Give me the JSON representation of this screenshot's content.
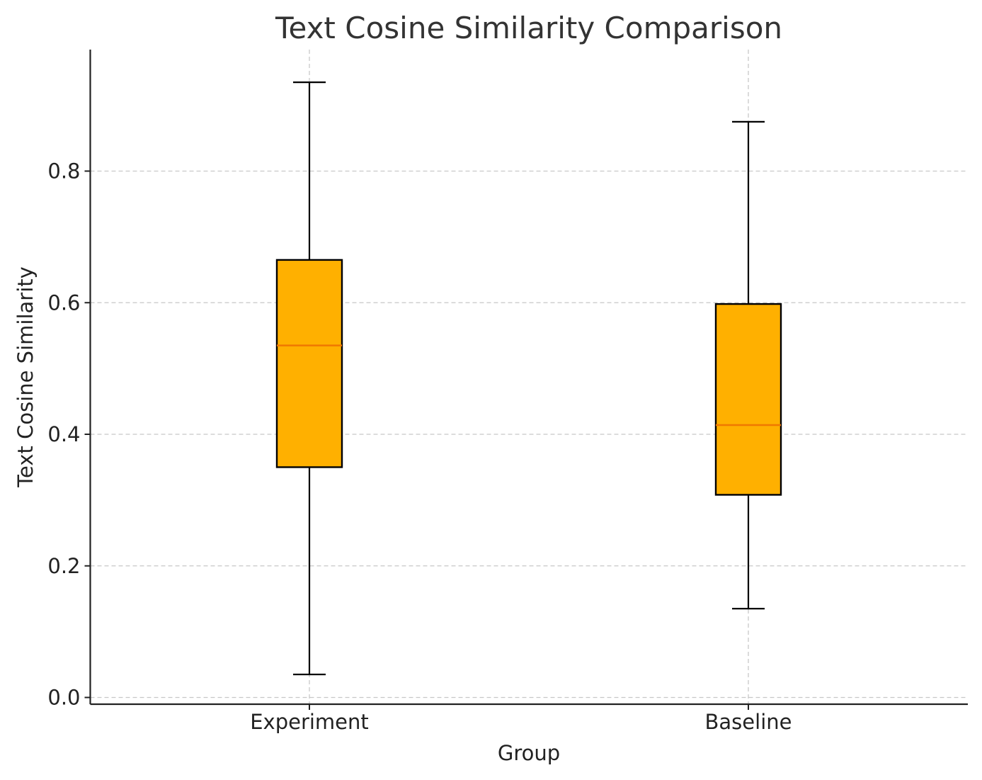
{
  "chart_data": {
    "type": "box",
    "title": "Text Cosine Similarity Comparison",
    "xlabel": "Group",
    "ylabel": "Text Cosine Similarity",
    "ylim": [
      -0.01,
      0.98
    ],
    "yticks": [
      "0.0",
      "0.2",
      "0.4",
      "0.6",
      "0.8"
    ],
    "ytick_values": [
      0.0,
      0.2,
      0.4,
      0.6,
      0.8
    ],
    "grid": true,
    "categories": [
      "Experiment",
      "Baseline"
    ],
    "boxes": [
      {
        "name": "Experiment",
        "whislo": 0.035,
        "q1": 0.35,
        "med": 0.535,
        "q3": 0.665,
        "whishi": 0.935
      },
      {
        "name": "Baseline",
        "whislo": 0.135,
        "q1": 0.308,
        "med": 0.414,
        "q3": 0.598,
        "whishi": 0.875
      }
    ],
    "colors": {
      "box_fill": "#FFB000",
      "median": "#F07800",
      "edge": "#000000",
      "grid": "#C8C8C8"
    }
  }
}
